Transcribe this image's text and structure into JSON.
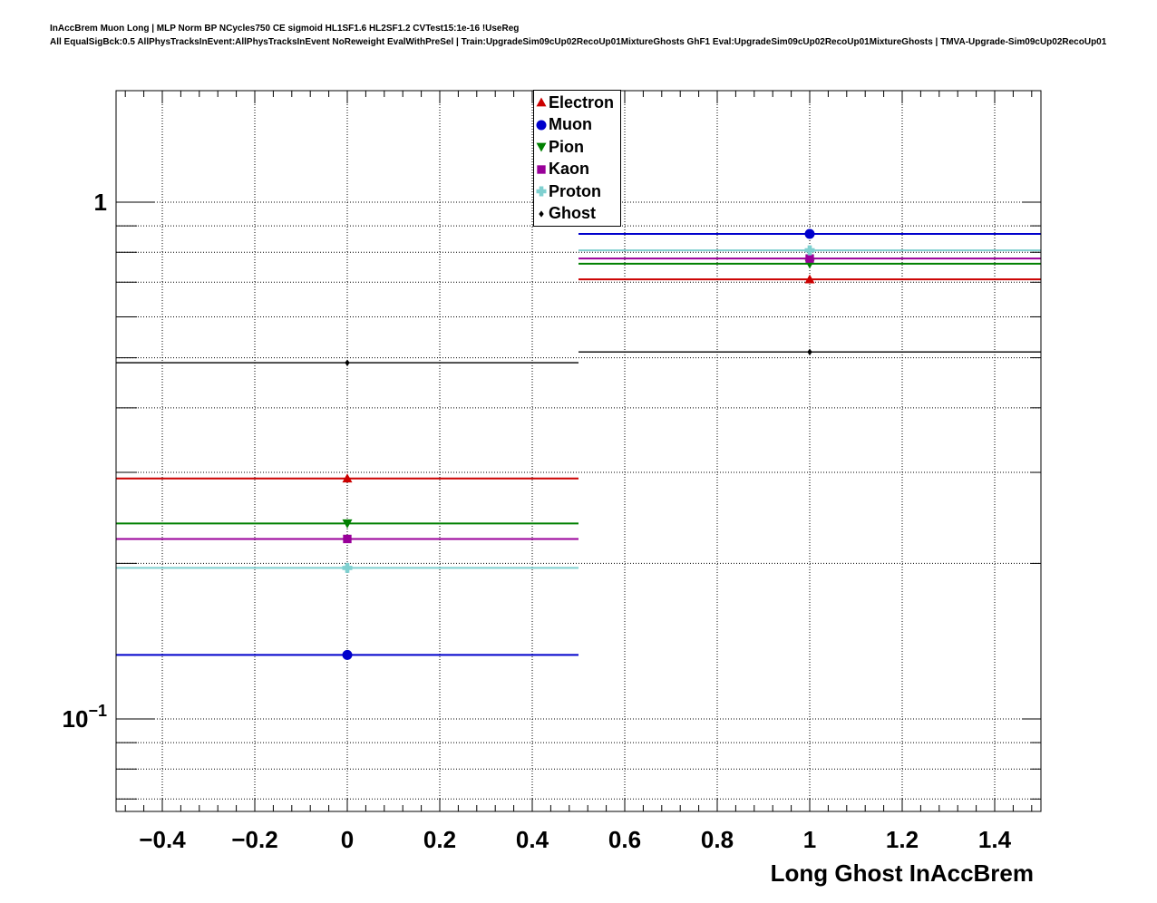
{
  "header": {
    "line1": "InAccBrem Muon Long | MLP Norm BP NCycles750 CE sigmoid HL1SF1.6 HL2SF1.2 CVTest15:1e-16 !UseReg",
    "line2": "All EqualSigBck:0.5 AllPhysTracksInEvent:AllPhysTracksInEvent NoReweight EvalWithPreSel | Train:UpgradeSim09cUp02RecoUp01MixtureGhosts GhF1 Eval:UpgradeSim09cUp02RecoUp01MixtureGhosts | TMVA-Upgrade-Sim09cUp02RecoUp01"
  },
  "axes": {
    "x": {
      "tick_labels": [
        {
          "value": -0.4,
          "label": "−0.4"
        },
        {
          "value": -0.2,
          "label": "−0.2"
        },
        {
          "value": 0,
          "label": "0"
        },
        {
          "value": 0.2,
          "label": "0.2"
        },
        {
          "value": 0.4,
          "label": "0.4"
        },
        {
          "value": 0.6,
          "label": "0.6"
        },
        {
          "value": 0.8,
          "label": "0.8"
        },
        {
          "value": 1,
          "label": "1"
        },
        {
          "value": 1.2,
          "label": "1.2"
        },
        {
          "value": 1.4,
          "label": "1.4"
        }
      ]
    },
    "y": {
      "scale": "log",
      "major_labels": [
        {
          "value": 1,
          "base": "1",
          "exp": ""
        },
        {
          "value": 0.1,
          "base": "10",
          "exp": "−1"
        }
      ]
    }
  },
  "chart_data": {
    "type": "line",
    "title": "",
    "xlabel": "Long Ghost InAccBrem",
    "ylabel": "",
    "x_scale": "linear",
    "y_scale": "log",
    "xlim": [
      -0.5,
      1.5
    ],
    "ylim": [
      0.066,
      1.64
    ],
    "grid": true,
    "legend_position": "top-center",
    "bins": {
      "centers": [
        0,
        1
      ],
      "half_width": 0.5
    },
    "series": [
      {
        "name": "Electron",
        "color": "#cc0000",
        "marker": "triangle-up",
        "values": [
          0.292,
          0.709
        ]
      },
      {
        "name": "Muon",
        "color": "#0000cc",
        "marker": "circle",
        "values": [
          0.133,
          0.868
        ]
      },
      {
        "name": "Pion",
        "color": "#008000",
        "marker": "triangle-down",
        "values": [
          0.239,
          0.76
        ]
      },
      {
        "name": "Kaon",
        "color": "#990099",
        "marker": "square",
        "values": [
          0.223,
          0.778
        ]
      },
      {
        "name": "Proton",
        "color": "#7fd0d0",
        "marker": "cross",
        "values": [
          0.196,
          0.807
        ]
      },
      {
        "name": "Ghost",
        "color": "#000000",
        "marker": "diamond",
        "values": [
          0.489,
          0.513
        ]
      }
    ],
    "x_major_ticks": [
      -0.4,
      -0.2,
      0,
      0.2,
      0.4,
      0.6,
      0.8,
      1,
      1.2,
      1.4
    ],
    "y_grid_values": [
      1,
      0.9,
      0.8,
      0.7,
      0.6,
      0.5,
      0.4,
      0.3,
      0.2,
      0.1,
      0.09,
      0.08,
      0.07
    ]
  }
}
